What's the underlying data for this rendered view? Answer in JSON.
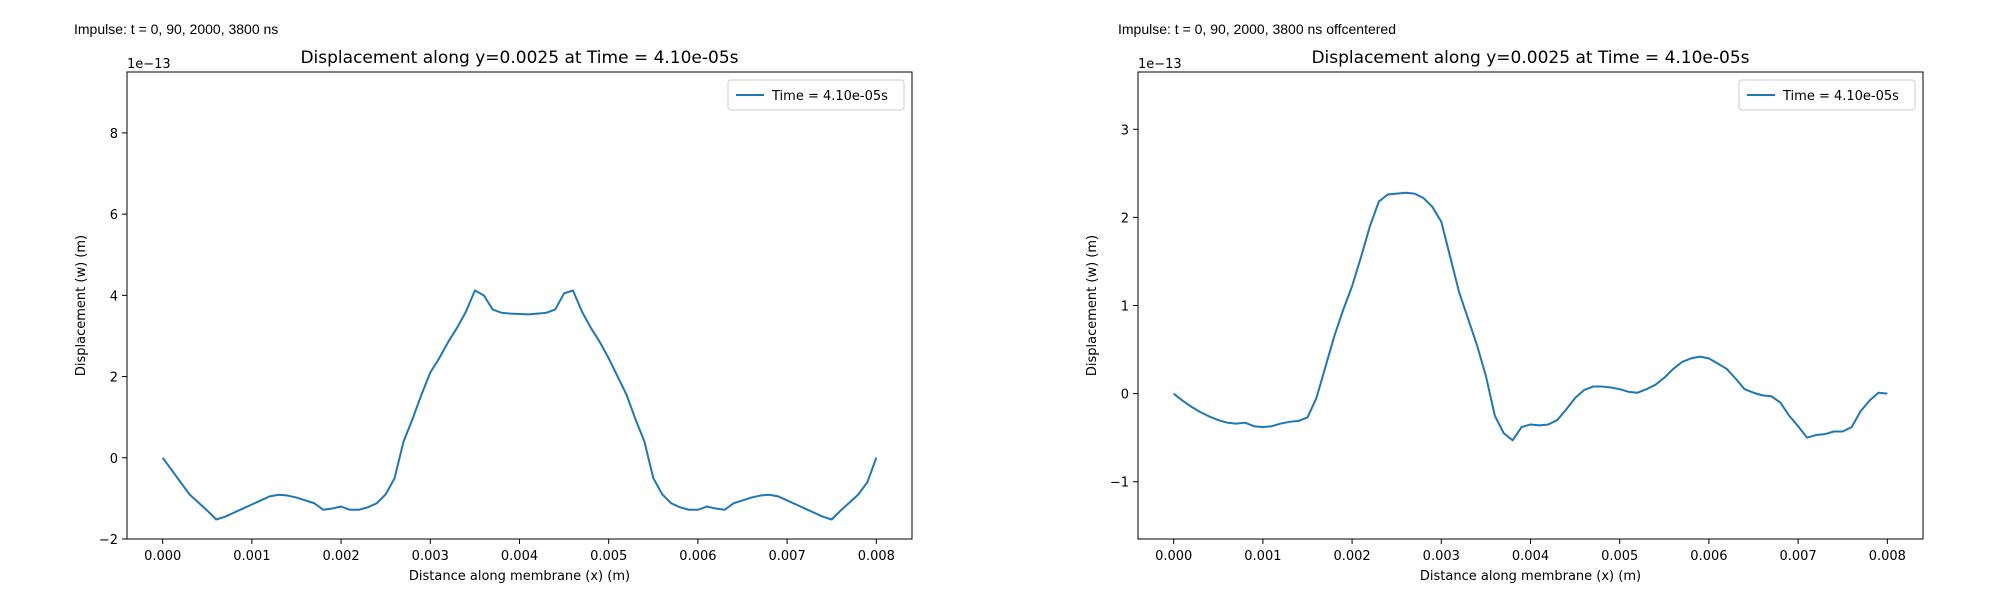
{
  "figure": {
    "panel_labels": [
      "Impulse: t = 0, 90, 2000, 3800 ns",
      "Impulse: t = 0, 90, 2000, 3800 ns offcentered"
    ]
  },
  "chart_data": [
    {
      "type": "line",
      "title": "Displacement along y=0.0025 at Time = 4.10e-05s",
      "xlabel": "Distance along membrane (x) (m)",
      "ylabel": "Displacement (w) (m)",
      "offset_text": "1e−13",
      "xlim": [
        -0.0004,
        0.0084
      ],
      "ylim": [
        -2.0,
        9.5
      ],
      "xticks": [
        0.0,
        0.001,
        0.002,
        0.003,
        0.004,
        0.005,
        0.006,
        0.007,
        0.008
      ],
      "xtick_labels": [
        "0.000",
        "0.001",
        "0.002",
        "0.003",
        "0.004",
        "0.005",
        "0.006",
        "0.007",
        "0.008"
      ],
      "yticks": [
        -2,
        0,
        2,
        4,
        6,
        8
      ],
      "ytick_labels": [
        "−2",
        "0",
        "2",
        "4",
        "6",
        "8"
      ],
      "grid": false,
      "legend": "top-right",
      "series": [
        {
          "name": "Time = 4.10e-05s",
          "color": "#1f77b4",
          "points": [
            [
              0.0,
              0.0
            ],
            [
              0.0001,
              -0.3
            ],
            [
              0.0002,
              -0.6
            ],
            [
              0.0003,
              -0.9
            ],
            [
              0.0004,
              -1.1
            ],
            [
              0.0005,
              -1.3
            ],
            [
              0.0006,
              -1.52
            ],
            [
              0.0007,
              -1.45
            ],
            [
              0.0008,
              -1.35
            ],
            [
              0.0009,
              -1.25
            ],
            [
              0.001,
              -1.15
            ],
            [
              0.0011,
              -1.05
            ],
            [
              0.0012,
              -0.95
            ],
            [
              0.0013,
              -0.91
            ],
            [
              0.0014,
              -0.93
            ],
            [
              0.0015,
              -0.98
            ],
            [
              0.0016,
              -1.05
            ],
            [
              0.0017,
              -1.12
            ],
            [
              0.0018,
              -1.28
            ],
            [
              0.0019,
              -1.25
            ],
            [
              0.002,
              -1.2
            ],
            [
              0.0021,
              -1.28
            ],
            [
              0.0022,
              -1.28
            ],
            [
              0.0023,
              -1.22
            ],
            [
              0.0024,
              -1.12
            ],
            [
              0.0025,
              -0.9
            ],
            [
              0.0026,
              -0.5
            ],
            [
              0.0027,
              0.4
            ],
            [
              0.0028,
              0.95
            ],
            [
              0.0029,
              1.55
            ],
            [
              0.003,
              2.1
            ],
            [
              0.0031,
              2.45
            ],
            [
              0.0032,
              2.85
            ],
            [
              0.0033,
              3.2
            ],
            [
              0.0034,
              3.6
            ],
            [
              0.0035,
              4.12
            ],
            [
              0.0036,
              4.0
            ],
            [
              0.0037,
              3.65
            ],
            [
              0.0038,
              3.57
            ],
            [
              0.0039,
              3.55
            ],
            [
              0.004,
              3.54
            ],
            [
              0.0041,
              3.53
            ],
            [
              0.0042,
              3.55
            ],
            [
              0.0043,
              3.57
            ],
            [
              0.0044,
              3.65
            ],
            [
              0.0045,
              4.05
            ],
            [
              0.0046,
              4.12
            ],
            [
              0.0047,
              3.6
            ],
            [
              0.0048,
              3.2
            ],
            [
              0.0049,
              2.85
            ],
            [
              0.005,
              2.45
            ],
            [
              0.0051,
              2.0
            ],
            [
              0.0052,
              1.55
            ],
            [
              0.0053,
              0.95
            ],
            [
              0.0054,
              0.4
            ],
            [
              0.0055,
              -0.5
            ],
            [
              0.0056,
              -0.9
            ],
            [
              0.0057,
              -1.12
            ],
            [
              0.0058,
              -1.22
            ],
            [
              0.0059,
              -1.28
            ],
            [
              0.006,
              -1.28
            ],
            [
              0.0061,
              -1.2
            ],
            [
              0.0062,
              -1.25
            ],
            [
              0.0063,
              -1.28
            ],
            [
              0.0064,
              -1.12
            ],
            [
              0.0065,
              -1.05
            ],
            [
              0.0066,
              -0.98
            ],
            [
              0.0067,
              -0.93
            ],
            [
              0.0068,
              -0.91
            ],
            [
              0.0069,
              -0.95
            ],
            [
              0.007,
              -1.05
            ],
            [
              0.0071,
              -1.15
            ],
            [
              0.0072,
              -1.25
            ],
            [
              0.0073,
              -1.35
            ],
            [
              0.0074,
              -1.45
            ],
            [
              0.0075,
              -1.52
            ],
            [
              0.0076,
              -1.3
            ],
            [
              0.0077,
              -1.1
            ],
            [
              0.0078,
              -0.9
            ],
            [
              0.0079,
              -0.6
            ],
            [
              0.008,
              0.0
            ]
          ]
        }
      ]
    },
    {
      "type": "line",
      "title": "Displacement along y=0.0025 at Time = 4.10e-05s",
      "xlabel": "Distance along membrane (x) (m)",
      "ylabel": "Displacement (w) (m)",
      "offset_text": "1e−13",
      "xlim": [
        -0.0004,
        0.0084
      ],
      "ylim": [
        -1.65,
        3.65
      ],
      "xticks": [
        0.0,
        0.001,
        0.002,
        0.003,
        0.004,
        0.005,
        0.006,
        0.007,
        0.008
      ],
      "xtick_labels": [
        "0.000",
        "0.001",
        "0.002",
        "0.003",
        "0.004",
        "0.005",
        "0.006",
        "0.007",
        "0.008"
      ],
      "yticks": [
        -1,
        0,
        1,
        2,
        3
      ],
      "ytick_labels": [
        "−1",
        "0",
        "1",
        "2",
        "3"
      ],
      "grid": false,
      "legend": "top-right",
      "series": [
        {
          "name": "Time = 4.10e-05s",
          "color": "#1f77b4",
          "points": [
            [
              0.0,
              0.0
            ],
            [
              0.0001,
              -0.08
            ],
            [
              0.0002,
              -0.15
            ],
            [
              0.0003,
              -0.21
            ],
            [
              0.0004,
              -0.26
            ],
            [
              0.0005,
              -0.3
            ],
            [
              0.0006,
              -0.33
            ],
            [
              0.0007,
              -0.34
            ],
            [
              0.0008,
              -0.33
            ],
            [
              0.0009,
              -0.37
            ],
            [
              0.001,
              -0.38
            ],
            [
              0.0011,
              -0.37
            ],
            [
              0.0012,
              -0.34
            ],
            [
              0.0013,
              -0.32
            ],
            [
              0.0014,
              -0.31
            ],
            [
              0.0015,
              -0.27
            ],
            [
              0.0016,
              -0.05
            ],
            [
              0.0017,
              0.3
            ],
            [
              0.0018,
              0.65
            ],
            [
              0.0019,
              0.95
            ],
            [
              0.002,
              1.22
            ],
            [
              0.0021,
              1.55
            ],
            [
              0.0022,
              1.9
            ],
            [
              0.0023,
              2.18
            ],
            [
              0.0024,
              2.26
            ],
            [
              0.0025,
              2.27
            ],
            [
              0.0026,
              2.28
            ],
            [
              0.0027,
              2.27
            ],
            [
              0.0028,
              2.22
            ],
            [
              0.0029,
              2.12
            ],
            [
              0.003,
              1.95
            ],
            [
              0.0031,
              1.55
            ],
            [
              0.0032,
              1.15
            ],
            [
              0.0033,
              0.85
            ],
            [
              0.0034,
              0.55
            ],
            [
              0.0035,
              0.2
            ],
            [
              0.0036,
              -0.25
            ],
            [
              0.0037,
              -0.45
            ],
            [
              0.0038,
              -0.53
            ],
            [
              0.0039,
              -0.38
            ],
            [
              0.004,
              -0.35
            ],
            [
              0.0041,
              -0.36
            ],
            [
              0.0042,
              -0.35
            ],
            [
              0.0043,
              -0.3
            ],
            [
              0.0044,
              -0.18
            ],
            [
              0.0045,
              -0.05
            ],
            [
              0.0046,
              0.04
            ],
            [
              0.0047,
              0.08
            ],
            [
              0.0048,
              0.08
            ],
            [
              0.0049,
              0.07
            ],
            [
              0.005,
              0.05
            ],
            [
              0.0051,
              0.02
            ],
            [
              0.0052,
              0.01
            ],
            [
              0.0053,
              0.05
            ],
            [
              0.0054,
              0.1
            ],
            [
              0.0055,
              0.18
            ],
            [
              0.0056,
              0.28
            ],
            [
              0.0057,
              0.36
            ],
            [
              0.0058,
              0.4
            ],
            [
              0.0059,
              0.42
            ],
            [
              0.006,
              0.4
            ],
            [
              0.0061,
              0.34
            ],
            [
              0.0062,
              0.28
            ],
            [
              0.0063,
              0.17
            ],
            [
              0.0064,
              0.05
            ],
            [
              0.0065,
              0.01
            ],
            [
              0.0066,
              -0.02
            ],
            [
              0.0067,
              -0.03
            ],
            [
              0.0068,
              -0.1
            ],
            [
              0.0069,
              -0.25
            ],
            [
              0.007,
              -0.37
            ],
            [
              0.0071,
              -0.5
            ],
            [
              0.0072,
              -0.47
            ],
            [
              0.0073,
              -0.46
            ],
            [
              0.0074,
              -0.43
            ],
            [
              0.0075,
              -0.43
            ],
            [
              0.0076,
              -0.38
            ],
            [
              0.0077,
              -0.2
            ],
            [
              0.0078,
              -0.08
            ],
            [
              0.0079,
              0.01
            ],
            [
              0.008,
              0.0
            ]
          ]
        }
      ]
    }
  ]
}
